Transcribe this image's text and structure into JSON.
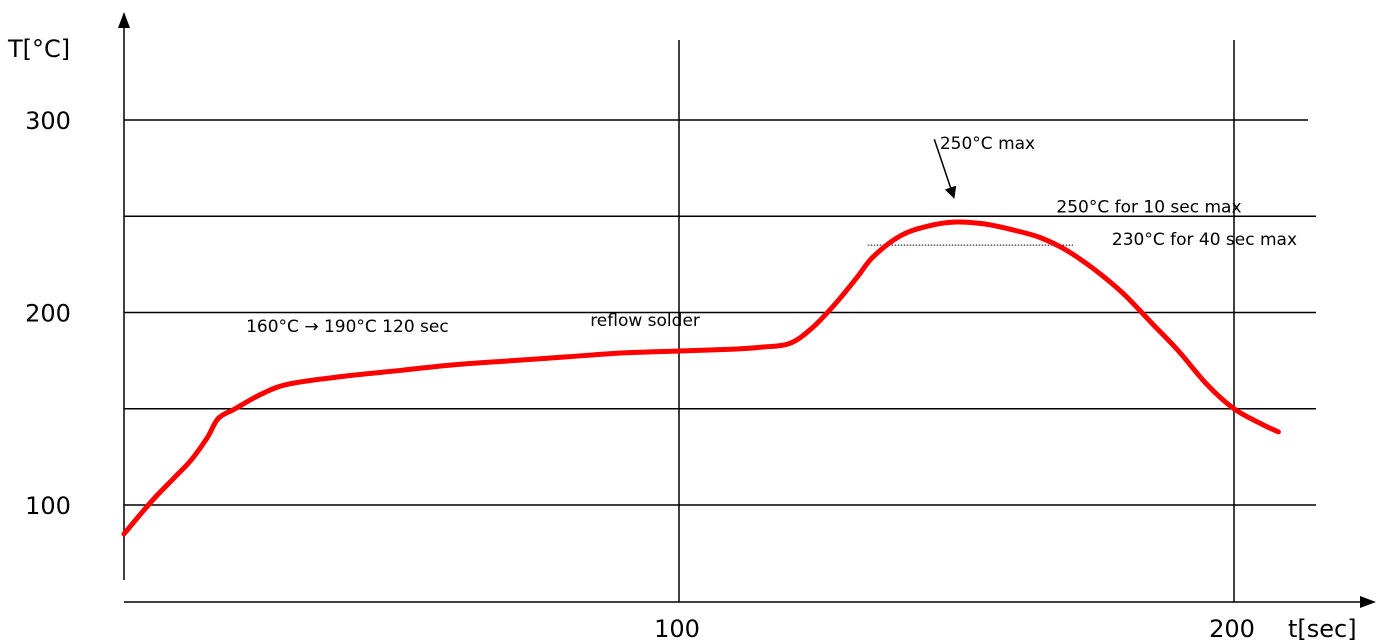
{
  "chart_data": {
    "type": "line",
    "title": "",
    "xlabel": "t[sec]",
    "ylabel": "T[°C]",
    "xlim": [
      0,
      212
    ],
    "ylim": [
      60,
      340
    ],
    "x_ticks": [
      {
        "value": 100,
        "label": "100"
      },
      {
        "value": 200,
        "label": "200"
      }
    ],
    "y_ticks": [
      {
        "value": 100,
        "label": "100"
      },
      {
        "value": 200,
        "label": "200"
      },
      {
        "value": 300,
        "label": "300"
      }
    ],
    "grid": {
      "horizontal": [
        100,
        150,
        200,
        250,
        300
      ],
      "vertical": [
        100,
        200
      ]
    },
    "series": [
      {
        "color": "#ff0000",
        "points": [
          [
            0,
            85
          ],
          [
            5,
            102
          ],
          [
            9,
            114
          ],
          [
            12,
            123
          ],
          [
            15,
            135
          ],
          [
            17,
            145
          ],
          [
            20,
            150
          ],
          [
            25,
            158
          ],
          [
            30,
            163
          ],
          [
            40,
            167
          ],
          [
            50,
            170
          ],
          [
            60,
            173
          ],
          [
            70,
            175
          ],
          [
            80,
            177
          ],
          [
            90,
            179
          ],
          [
            100,
            180
          ],
          [
            110,
            181
          ],
          [
            115,
            182
          ],
          [
            120,
            184
          ],
          [
            124,
            192
          ],
          [
            128,
            204
          ],
          [
            132,
            218
          ],
          [
            135,
            229
          ],
          [
            140,
            240
          ],
          [
            145,
            245
          ],
          [
            150,
            247
          ],
          [
            155,
            246
          ],
          [
            160,
            243
          ],
          [
            165,
            239
          ],
          [
            170,
            232
          ],
          [
            175,
            222
          ],
          [
            180,
            210
          ],
          [
            185,
            195
          ],
          [
            190,
            180
          ],
          [
            195,
            163
          ],
          [
            200,
            150
          ],
          [
            205,
            142
          ],
          [
            208,
            138
          ]
        ]
      }
    ],
    "reference_lines": [
      {
        "type": "dotted",
        "y": 235,
        "x_start": 134,
        "x_end": 171
      }
    ],
    "annotations": [
      {
        "text": "160°C → 190°C  120 sec",
        "x": 22,
        "y": 190
      },
      {
        "text": "reflow solder",
        "x": 84,
        "y": 193
      },
      {
        "text": "250°C max",
        "x": 147,
        "y": 285,
        "arrow_from": [
          146,
          290
        ],
        "arrow_to": [
          149.5,
          260
        ]
      },
      {
        "text": "250°C for 10 sec max",
        "x": 168,
        "y": 252
      },
      {
        "text": "230°C for 40 sec max",
        "x": 178,
        "y": 235
      }
    ]
  }
}
